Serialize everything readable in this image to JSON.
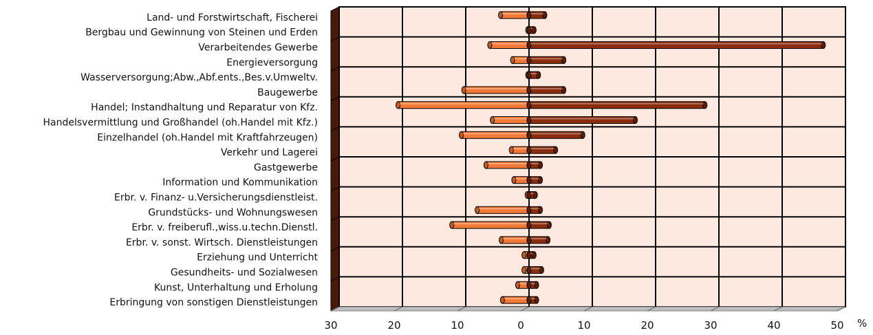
{
  "chart_data": {
    "type": "bar",
    "orientation": "horizontal",
    "categories": [
      "Land- und Forstwirtschaft, Fischerei",
      "Bergbau und Gewinnung von Steinen und Erden",
      "Verarbeitendes Gewerbe",
      "Energieversorgung",
      "Wasserversorgung;Abw.,Abf.ents.,Bes.v.Umweltv.",
      "Baugewerbe",
      "Handel; Instandhaltung und Reparatur von Kfz.",
      "Handelsvermittlung und Großhandel (oh.Handel mit Kfz.)",
      "Einzelhandel (oh.Handel mit Kraftfahrzeugen)",
      "Verkehr und Lagerei",
      "Gastgewerbe",
      "Information und Kommunikation",
      "Erbr. v. Finanz- u.Versicherungsdienstleist.",
      "Grundstücks- und Wohnungswesen",
      "Erbr. v. freiberufl.,wiss.u.techn.Dienstl.",
      "Erbr. v. sonst. Wirtsch. Dienstleistungen",
      "Erziehung und Unterricht",
      "Gesundheits- und Sozialwesen",
      "Kunst, Unterhaltung und Erholung",
      "Erbringung von sonstigen Dienstleistungen"
    ],
    "series": [
      {
        "values": [
          -4.5,
          -0.2,
          -6.2,
          -2.6,
          -0.2,
          -10.3,
          -20.7,
          -5.8,
          -10.7,
          -2.8,
          -6.8,
          -2.4,
          -0.3,
          -8.2,
          -12.2,
          -4.4,
          -0.8,
          -0.8,
          -1.8,
          -4.2
        ],
        "color": "#f27a36"
      },
      {
        "values": [
          2.5,
          0.8,
          46.5,
          5.5,
          1.5,
          5.5,
          27.8,
          16.8,
          8.5,
          4.2,
          1.8,
          1.8,
          1.0,
          1.8,
          3.2,
          3.0,
          0.8,
          2.0,
          1.2,
          1.2
        ],
        "color": "#8b2d0c"
      }
    ],
    "xlim": [
      -30,
      50
    ],
    "xticks": [
      "30",
      "20",
      "10",
      "0",
      "10",
      "20",
      "30",
      "40",
      "50"
    ],
    "x_unit": "%",
    "grid": true,
    "background_color": "#fde9df"
  }
}
